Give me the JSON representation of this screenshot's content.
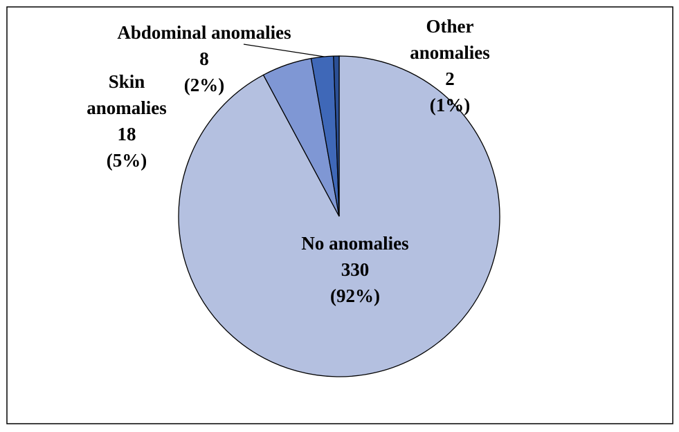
{
  "chart_data": {
    "type": "pie",
    "categories": [
      "No anomalies",
      "Skin anomalies",
      "Abdominal anomalies",
      "Other anomalies"
    ],
    "values": [
      330,
      18,
      8,
      2
    ],
    "percent_labels": [
      "(92%)",
      "(5%)",
      "(2%)",
      "(1%)"
    ],
    "colors": [
      "#b4c0e0",
      "#7f97d4",
      "#3f68b8",
      "#2b4f95"
    ]
  }
}
